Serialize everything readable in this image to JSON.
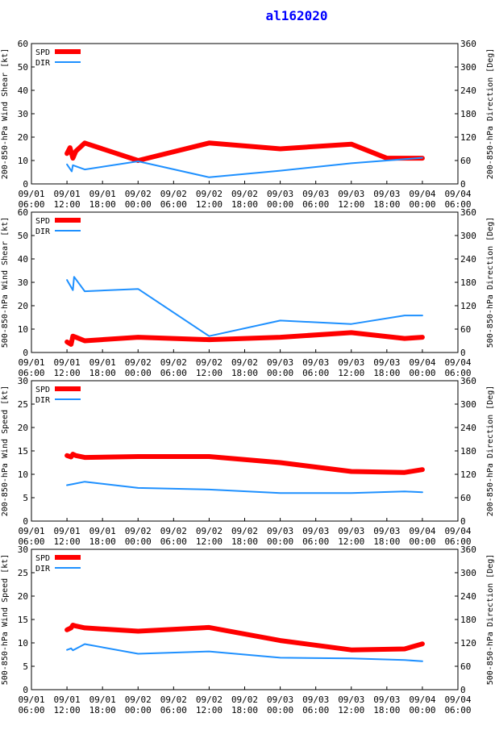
{
  "title": "al162020",
  "colors": {
    "spd": "#ff0000",
    "dir": "#1e90ff",
    "title": "#0000ff",
    "frame": "#000000"
  },
  "chart_data": [
    {
      "type": "line",
      "ylabel": "200-850-hPa Wind Shear [kt]",
      "y2label": "200-850-hPa Direction [Deg]",
      "ylim": [
        0,
        60
      ],
      "yticks": [
        0,
        10,
        20,
        30,
        40,
        50,
        60
      ],
      "y2lim": [
        0,
        360
      ],
      "y2ticks": [
        0,
        60,
        120,
        180,
        240,
        300,
        360
      ],
      "xlim": [
        0,
        72
      ],
      "xticks": [
        0,
        6,
        12,
        18,
        24,
        30,
        36,
        42,
        48,
        54,
        60,
        66,
        72
      ],
      "xticklabels": [
        [
          "09/01",
          "06:00"
        ],
        [
          "09/01",
          "12:00"
        ],
        [
          "09/01",
          "18:00"
        ],
        [
          "09/02",
          "00:00"
        ],
        [
          "09/02",
          "06:00"
        ],
        [
          "09/02",
          "12:00"
        ],
        [
          "09/02",
          "18:00"
        ],
        [
          "09/03",
          "00:00"
        ],
        [
          "09/03",
          "06:00"
        ],
        [
          "09/03",
          "12:00"
        ],
        [
          "09/03",
          "18:00"
        ],
        [
          "09/04",
          "00:00"
        ],
        [
          "09/04",
          "06:00"
        ]
      ],
      "legend": [
        "SPD",
        "DIR"
      ],
      "series": [
        {
          "name": "SPD",
          "axis": "left",
          "x": [
            6,
            6.5,
            7,
            7.5,
            9,
            18,
            30,
            42,
            54,
            60,
            66
          ],
          "y": [
            13,
            15.5,
            11,
            14,
            17.5,
            10,
            17.5,
            15,
            17,
            11,
            11
          ]
        },
        {
          "name": "DIR",
          "axis": "right",
          "x": [
            6,
            6.8,
            7,
            9,
            18,
            30,
            42,
            54,
            66
          ],
          "y": [
            50,
            32,
            48,
            37,
            58,
            17,
            34,
            53,
            67
          ]
        }
      ]
    },
    {
      "type": "line",
      "ylabel": "500-850-hPa Wind Shear [kt]",
      "y2label": "500-850-hPa Direction [Deg]",
      "ylim": [
        0,
        60
      ],
      "yticks": [
        0,
        10,
        20,
        30,
        40,
        50,
        60
      ],
      "y2lim": [
        0,
        360
      ],
      "y2ticks": [
        0,
        60,
        120,
        180,
        240,
        300,
        360
      ],
      "xlim": [
        0,
        72
      ],
      "xticks": [
        0,
        6,
        12,
        18,
        24,
        30,
        36,
        42,
        48,
        54,
        60,
        66,
        72
      ],
      "xticklabels": [
        [
          "09/01",
          "06:00"
        ],
        [
          "09/01",
          "12:00"
        ],
        [
          "09/01",
          "18:00"
        ],
        [
          "09/02",
          "00:00"
        ],
        [
          "09/02",
          "06:00"
        ],
        [
          "09/02",
          "12:00"
        ],
        [
          "09/02",
          "18:00"
        ],
        [
          "09/03",
          "00:00"
        ],
        [
          "09/03",
          "06:00"
        ],
        [
          "09/03",
          "12:00"
        ],
        [
          "09/03",
          "18:00"
        ],
        [
          "09/04",
          "00:00"
        ],
        [
          "09/04",
          "06:00"
        ]
      ],
      "legend": [
        "SPD",
        "DIR"
      ],
      "series": [
        {
          "name": "SPD",
          "axis": "left",
          "x": [
            6,
            6.7,
            7,
            7.5,
            9,
            18,
            30,
            42,
            54,
            63,
            66
          ],
          "y": [
            4.5,
            3.5,
            7,
            6.5,
            5,
            6.5,
            5.5,
            6.5,
            8.5,
            6,
            6.5
          ]
        },
        {
          "name": "DIR",
          "axis": "right",
          "x": [
            6,
            7,
            7.2,
            9,
            18,
            30,
            42,
            54,
            63,
            66
          ],
          "y": [
            186,
            160,
            194,
            157,
            163,
            42,
            82,
            73,
            95,
            95
          ]
        }
      ]
    },
    {
      "type": "line",
      "ylabel": "200-850-hPa Wind Speed [kt]",
      "y2label": "200-850-hPa Direction [Deg]",
      "ylim": [
        0,
        30
      ],
      "yticks": [
        0,
        5,
        10,
        15,
        20,
        25,
        30
      ],
      "y2lim": [
        0,
        360
      ],
      "y2ticks": [
        0,
        60,
        120,
        180,
        240,
        300,
        360
      ],
      "xlim": [
        0,
        72
      ],
      "xticks": [
        0,
        6,
        12,
        18,
        24,
        30,
        36,
        42,
        48,
        54,
        60,
        66,
        72
      ],
      "xticklabels": [
        [
          "09/01",
          "06:00"
        ],
        [
          "09/01",
          "12:00"
        ],
        [
          "09/01",
          "18:00"
        ],
        [
          "09/02",
          "00:00"
        ],
        [
          "09/02",
          "06:00"
        ],
        [
          "09/02",
          "12:00"
        ],
        [
          "09/02",
          "18:00"
        ],
        [
          "09/03",
          "00:00"
        ],
        [
          "09/03",
          "06:00"
        ],
        [
          "09/03",
          "12:00"
        ],
        [
          "09/03",
          "18:00"
        ],
        [
          "09/04",
          "00:00"
        ],
        [
          "09/04",
          "06:00"
        ]
      ],
      "legend": [
        "SPD",
        "DIR"
      ],
      "series": [
        {
          "name": "SPD",
          "axis": "left",
          "x": [
            6,
            6.7,
            7,
            7.5,
            9,
            18,
            30,
            42,
            54,
            63,
            66
          ],
          "y": [
            14,
            13.7,
            14.3,
            14,
            13.6,
            13.8,
            13.8,
            12.5,
            10.6,
            10.4,
            11
          ]
        },
        {
          "name": "DIR",
          "axis": "right",
          "x": [
            6,
            7,
            9,
            18,
            30,
            42,
            54,
            63,
            66
          ],
          "y": [
            92,
            95,
            101,
            85,
            81,
            72,
            72,
            76,
            74
          ]
        }
      ]
    },
    {
      "type": "line",
      "ylabel": "500-850-hPa Wind Speed [kt]",
      "y2label": "500-850-hPa Direction [Deg]",
      "ylim": [
        0,
        30
      ],
      "yticks": [
        0,
        5,
        10,
        15,
        20,
        25,
        30
      ],
      "y2lim": [
        0,
        360
      ],
      "y2ticks": [
        0,
        60,
        120,
        180,
        240,
        300,
        360
      ],
      "xlim": [
        0,
        72
      ],
      "xticks": [
        0,
        6,
        12,
        18,
        24,
        30,
        36,
        42,
        48,
        54,
        60,
        66,
        72
      ],
      "xticklabels": [
        [
          "09/01",
          "06:00"
        ],
        [
          "09/01",
          "12:00"
        ],
        [
          "09/01",
          "18:00"
        ],
        [
          "09/02",
          "00:00"
        ],
        [
          "09/02",
          "06:00"
        ],
        [
          "09/02",
          "12:00"
        ],
        [
          "09/02",
          "18:00"
        ],
        [
          "09/03",
          "00:00"
        ],
        [
          "09/03",
          "06:00"
        ],
        [
          "09/03",
          "12:00"
        ],
        [
          "09/03",
          "18:00"
        ],
        [
          "09/04",
          "00:00"
        ],
        [
          "09/04",
          "06:00"
        ]
      ],
      "legend": [
        "SPD",
        "DIR"
      ],
      "series": [
        {
          "name": "SPD",
          "axis": "left",
          "x": [
            6,
            6.7,
            7,
            7.5,
            9,
            18,
            30,
            42,
            54,
            63,
            66
          ],
          "y": [
            12.8,
            13.2,
            13.8,
            13.6,
            13.2,
            12.5,
            13.3,
            10.5,
            8.5,
            8.7,
            9.8
          ]
        },
        {
          "name": "DIR",
          "axis": "right",
          "x": [
            6,
            6.7,
            7,
            9,
            18,
            30,
            42,
            54,
            63,
            66
          ],
          "y": [
            102,
            106,
            101,
            117,
            92,
            98,
            82,
            80,
            76,
            73
          ]
        }
      ]
    }
  ]
}
